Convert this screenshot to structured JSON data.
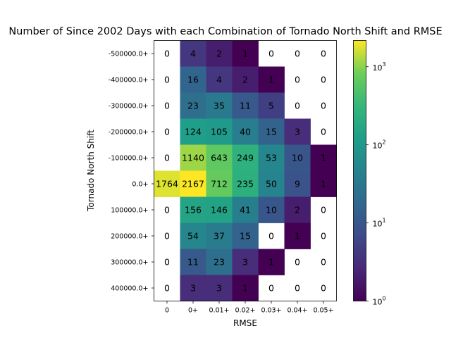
{
  "chart_data": {
    "type": "heatmap",
    "title": "Number of Since 2002 Days with each Combination of Tornado North Shift and RMSE",
    "xlabel": "RMSE",
    "ylabel": "Tornado North Shift",
    "x_categories": [
      "0",
      "0+",
      "0.01+",
      "0.02+",
      "0.03+",
      "0.04+",
      "0.05+"
    ],
    "y_categories": [
      "-500000.0+",
      "-400000.0+",
      "-300000.0+",
      "-200000.0+",
      "-100000.0+",
      "0.0+",
      "100000.0+",
      "200000.0+",
      "300000.0+",
      "400000.0+"
    ],
    "values": [
      [
        0,
        4,
        2,
        1,
        0,
        0,
        0
      ],
      [
        0,
        16,
        4,
        2,
        1,
        0,
        0
      ],
      [
        0,
        23,
        35,
        11,
        5,
        0,
        0
      ],
      [
        0,
        124,
        105,
        40,
        15,
        3,
        0
      ],
      [
        0,
        1140,
        643,
        249,
        53,
        10,
        1
      ],
      [
        1764,
        2167,
        712,
        235,
        50,
        9,
        1
      ],
      [
        0,
        156,
        146,
        41,
        10,
        2,
        0
      ],
      [
        0,
        54,
        37,
        15,
        0,
        1,
        0
      ],
      [
        0,
        11,
        23,
        3,
        1,
        0,
        0
      ],
      [
        0,
        3,
        3,
        1,
        0,
        0,
        0
      ]
    ],
    "color_scale": "log",
    "colormap": "viridis",
    "zero_color": "#ffffff",
    "colorbar_range": [
      1,
      2167
    ],
    "colorbar_ticks": [
      {
        "value": 1,
        "base": "10",
        "exp": "0"
      },
      {
        "value": 10,
        "base": "10",
        "exp": "1"
      },
      {
        "value": 100,
        "base": "10",
        "exp": "2"
      },
      {
        "value": 1000,
        "base": "10",
        "exp": "3"
      }
    ],
    "grid": false
  }
}
